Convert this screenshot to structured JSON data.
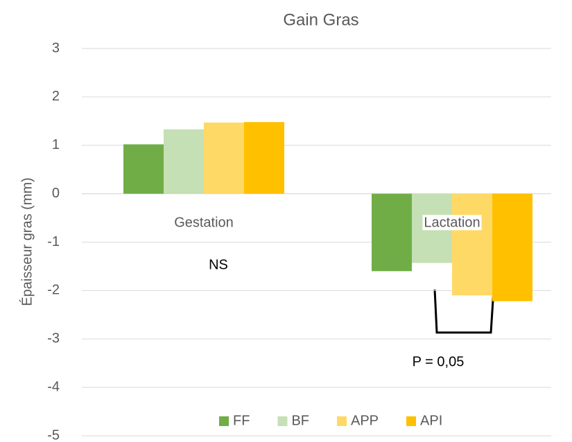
{
  "chart_data": {
    "type": "bar",
    "title": "Gain Gras",
    "ylabel": "Épaisseur gras (mm)",
    "categories": [
      "Gestation",
      "Lactation"
    ],
    "series": [
      {
        "name": "FF",
        "color": "#70ad47",
        "values": [
          1.02,
          -1.6
        ]
      },
      {
        "name": "BF",
        "color": "#c5e0b4",
        "values": [
          1.33,
          -1.43
        ]
      },
      {
        "name": "APP",
        "color": "#ffd966",
        "values": [
          1.47,
          -2.1
        ]
      },
      {
        "name": "API",
        "color": "#ffc000",
        "values": [
          1.48,
          -2.22
        ]
      }
    ],
    "ylim": [
      -5,
      3
    ],
    "yticks": [
      -5,
      -4,
      -3,
      -2,
      -1,
      0,
      1,
      2,
      3
    ],
    "grid": true,
    "legend": "bottom",
    "annotations": [
      "NS",
      "P = 0,05"
    ]
  }
}
